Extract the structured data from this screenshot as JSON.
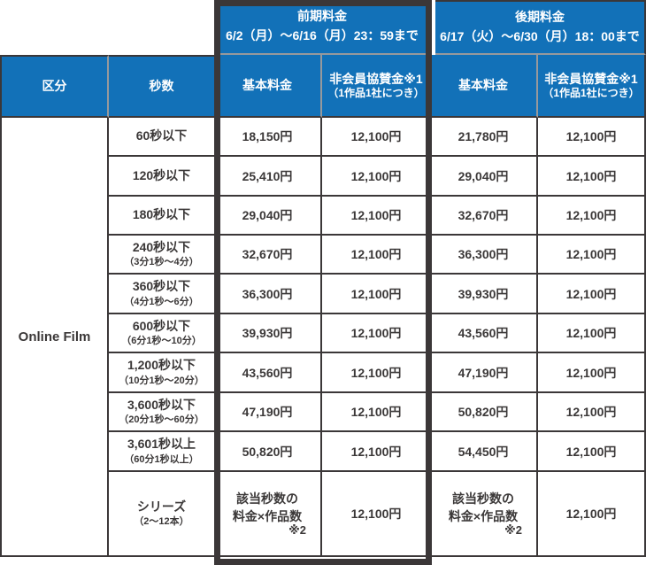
{
  "colors": {
    "header_blue": "#1271b8",
    "highlight_frame_dark": "#3b3738",
    "divider_gray": "#97999c",
    "text_dark": "#3b3838"
  },
  "chart_data": {
    "type": "table",
    "period_headers": {
      "early": {
        "title": "前期料金",
        "dates": "6/2（月）～6/16（月）23：59まで"
      },
      "late": {
        "title": "後期料金",
        "dates": "6/17（火）～6/30（月）18：00まで"
      }
    },
    "columns": {
      "category": "区分",
      "seconds": "秒数",
      "basic_fee": "基本料金",
      "nonmember_fee": "非会員協賛金※1",
      "nonmember_fee_note": "（1作品1社につき）"
    },
    "category": "Online Film",
    "rows": [
      {
        "seconds": "60秒以下",
        "note": "",
        "early_basic": "18,150円",
        "early_nonmember": "12,100円",
        "late_basic": "21,780円",
        "late_nonmember": "12,100円"
      },
      {
        "seconds": "120秒以下",
        "note": "",
        "early_basic": "25,410円",
        "early_nonmember": "12,100円",
        "late_basic": "29,040円",
        "late_nonmember": "12,100円"
      },
      {
        "seconds": "180秒以下",
        "note": "",
        "early_basic": "29,040円",
        "early_nonmember": "12,100円",
        "late_basic": "32,670円",
        "late_nonmember": "12,100円"
      },
      {
        "seconds": "240秒以下",
        "note": "（3分1秒～4分）",
        "early_basic": "32,670円",
        "early_nonmember": "12,100円",
        "late_basic": "36,300円",
        "late_nonmember": "12,100円"
      },
      {
        "seconds": "360秒以下",
        "note": "（4分1秒～6分）",
        "early_basic": "36,300円",
        "early_nonmember": "12,100円",
        "late_basic": "39,930円",
        "late_nonmember": "12,100円"
      },
      {
        "seconds": "600秒以下",
        "note": "（6分1秒～10分）",
        "early_basic": "39,930円",
        "early_nonmember": "12,100円",
        "late_basic": "43,560円",
        "late_nonmember": "12,100円"
      },
      {
        "seconds": "1,200秒以下",
        "note": "（10分1秒～20分）",
        "early_basic": "43,560円",
        "early_nonmember": "12,100円",
        "late_basic": "47,190円",
        "late_nonmember": "12,100円"
      },
      {
        "seconds": "3,600秒以下",
        "note": "（20分1秒～60分）",
        "early_basic": "47,190円",
        "early_nonmember": "12,100円",
        "late_basic": "50,820円",
        "late_nonmember": "12,100円"
      },
      {
        "seconds": "3,601秒以上",
        "note": "（60分1秒以上）",
        "early_basic": "50,820円",
        "early_nonmember": "12,100円",
        "late_basic": "54,450円",
        "late_nonmember": "12,100円"
      },
      {
        "seconds": "シリーズ",
        "note": "（2～12本）",
        "early_basic": "該当秒数の\n料金×作品数",
        "early_basic_note": "※2",
        "early_nonmember": "12,100円",
        "late_basic": "該当秒数の\n料金×作品数",
        "late_basic_note": "※2",
        "late_nonmember": "12,100円"
      }
    ]
  }
}
